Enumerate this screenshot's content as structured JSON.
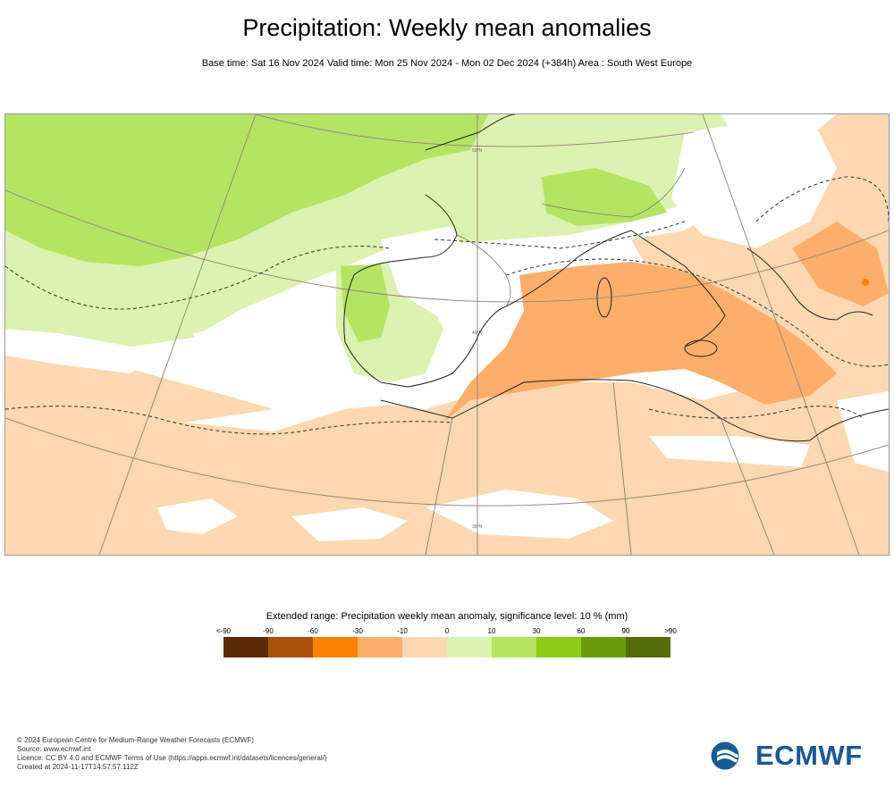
{
  "header": {
    "title": "Precipitation: Weekly mean anomalies",
    "subtitle": "Base time: Sat 16 Nov 2024 Valid time: Mon 25 Nov 2024 - Mon 02 Dec 2024 (+384h) Area : South West Europe"
  },
  "map": {
    "grid_labels": [
      "50°N",
      "40°N",
      "30°N"
    ],
    "region": "South West Europe"
  },
  "legend": {
    "title": "Extended range: Precipitation weekly mean anomaly, significance level: 10 % (mm)",
    "ticks": [
      "<-90",
      "-90",
      "-60",
      "-30",
      "-10",
      "0",
      "10",
      "30",
      "60",
      "90",
      ">90"
    ],
    "colors": [
      "#5a2a06",
      "#a8500c",
      "#fb8200",
      "#fdae6a",
      "#fdd8b0",
      "#dcf2b0",
      "#b4e462",
      "#8ccc16",
      "#6c9c0e",
      "#546c0a"
    ]
  },
  "footer": {
    "line1": "© 2024 European Centre for Medium-Range Weather Forecasts (ECMWF)",
    "line2": "Source: www.ecmwf.int",
    "line3": "Licence: CC BY 4.0 and ECMWF Terms of Use (https://apps.ecmwf.int/datasets/licences/general/)",
    "line4": "Created at 2024-11-17T14:57:57.112Z"
  },
  "logo": {
    "text": "ECMWF"
  }
}
